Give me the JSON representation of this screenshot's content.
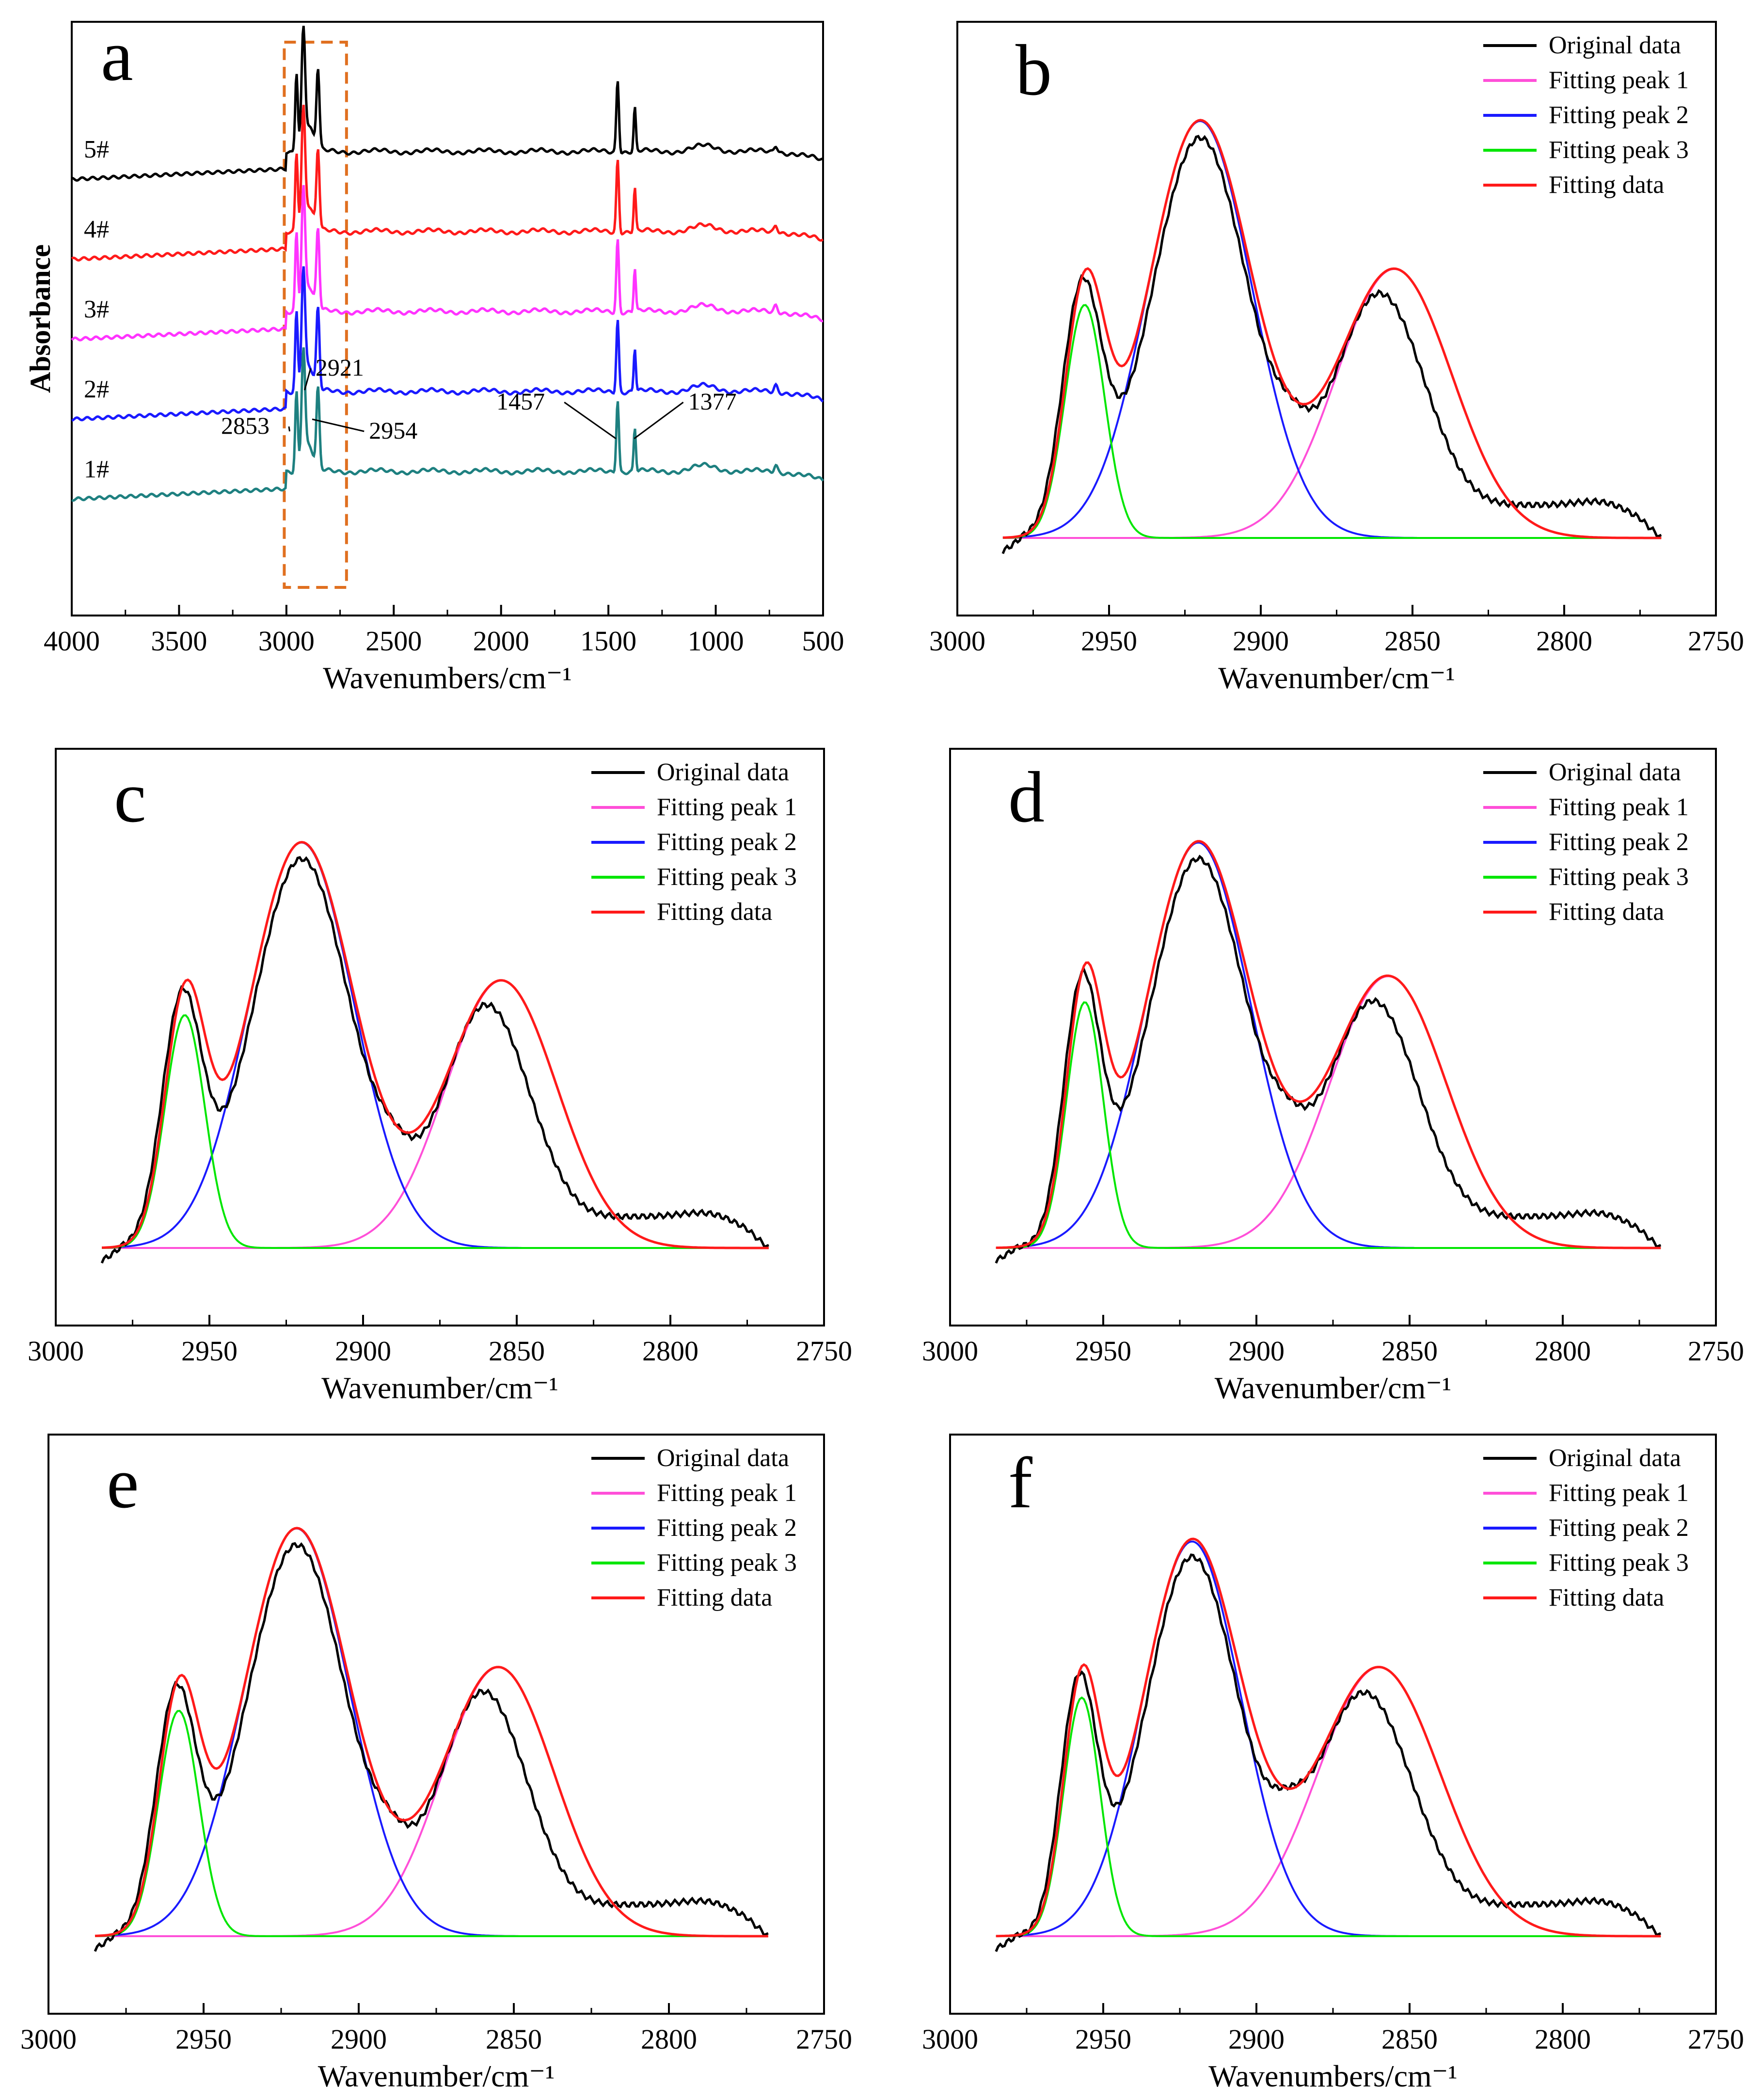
{
  "chart_data": [
    {
      "id": "a",
      "type": "line",
      "panel_label": "a",
      "xlabel": "Wavenumbers/cm⁻¹",
      "ylabel": "Absorbance",
      "xlim": [
        4000,
        500
      ],
      "x_ticks": [
        4000,
        3500,
        3000,
        2500,
        2000,
        1500,
        1000,
        500
      ],
      "highlight_range": [
        3010,
        2720
      ],
      "series": [
        {
          "name": "5#",
          "color": "#000000",
          "offset": 4
        },
        {
          "name": "4#",
          "color": "#ff1a1a",
          "offset": 3
        },
        {
          "name": "3#",
          "color": "#ff33ff",
          "offset": 2
        },
        {
          "name": "2#",
          "color": "#1a1aff",
          "offset": 1
        },
        {
          "name": "1#",
          "color": "#1e8080",
          "offset": 0
        }
      ],
      "annotations": [
        {
          "text": "2853",
          "x": 2853
        },
        {
          "text": "2921",
          "x": 2921
        },
        {
          "text": "2954",
          "x": 2954
        },
        {
          "text": "1457",
          "x": 1457
        },
        {
          "text": "1377",
          "x": 1377
        }
      ]
    },
    {
      "id": "b",
      "type": "line",
      "panel_label": "b",
      "xlabel": "Wavenumber/cm⁻¹",
      "xlim": [
        3000,
        2750
      ],
      "x_ticks": [
        3000,
        2950,
        2900,
        2850,
        2800,
        2750
      ],
      "legend": [
        "Original data",
        "Fitting peak 1",
        "Fitting peak 2",
        "Fitting peak 3",
        "Fitting data"
      ],
      "peaks": [
        {
          "name": "Fitting peak 1",
          "center": 2856,
          "height": 0.6,
          "width": 19
        },
        {
          "name": "Fitting peak 2",
          "center": 2920,
          "height": 0.93,
          "width": 17
        },
        {
          "name": "Fitting peak 3",
          "center": 2958,
          "height": 0.52,
          "width": 6.5
        }
      ]
    },
    {
      "id": "c",
      "type": "line",
      "panel_label": "c",
      "xlabel": "Wavenumber/cm⁻¹",
      "xlim": [
        3000,
        2750
      ],
      "x_ticks": [
        3000,
        2950,
        2900,
        2850,
        2800,
        2750
      ],
      "legend": [
        "Original data",
        "Fitting peak 1",
        "Fitting peak 2",
        "Fitting peak 3",
        "Fitting data"
      ],
      "peaks": [
        {
          "name": "Fitting peak 1",
          "center": 2855,
          "height": 0.62,
          "width": 18
        },
        {
          "name": "Fitting peak 2",
          "center": 2920,
          "height": 0.94,
          "width": 17
        },
        {
          "name": "Fitting peak 3",
          "center": 2958,
          "height": 0.54,
          "width": 6.5
        }
      ]
    },
    {
      "id": "d",
      "type": "line",
      "panel_label": "d",
      "xlabel": "Wavenumber/cm⁻¹",
      "xlim": [
        3000,
        2750
      ],
      "x_ticks": [
        3000,
        2950,
        2900,
        2850,
        2800,
        2750
      ],
      "legend": [
        "Original data",
        "Fitting peak 1",
        "Fitting peak 2",
        "Fitting peak 3",
        "Fitting data"
      ],
      "peaks": [
        {
          "name": "Fitting peak 1",
          "center": 2857,
          "height": 0.63,
          "width": 19
        },
        {
          "name": "Fitting peak 2",
          "center": 2919,
          "height": 0.94,
          "width": 17
        },
        {
          "name": "Fitting peak 3",
          "center": 2956,
          "height": 0.57,
          "width": 6
        }
      ]
    },
    {
      "id": "e",
      "type": "line",
      "panel_label": "e",
      "xlabel": "Wavenumber/cm⁻¹",
      "xlim": [
        3000,
        2750
      ],
      "x_ticks": [
        3000,
        2950,
        2900,
        2850,
        2800,
        2750
      ],
      "legend": [
        "Original data",
        "Fitting peak 1",
        "Fitting peak 2",
        "Fitting peak 3",
        "Fitting data"
      ],
      "peaks": [
        {
          "name": "Fitting peak 1",
          "center": 2855,
          "height": 0.62,
          "width": 18
        },
        {
          "name": "Fitting peak 2",
          "center": 2920,
          "height": 0.94,
          "width": 17
        },
        {
          "name": "Fitting peak 3",
          "center": 2958,
          "height": 0.52,
          "width": 6.5
        }
      ]
    },
    {
      "id": "f",
      "type": "line",
      "panel_label": "f",
      "xlabel": "Wavenumbers/cm⁻¹",
      "xlim": [
        3000,
        2750
      ],
      "x_ticks": [
        3000,
        2950,
        2900,
        2850,
        2800,
        2750
      ],
      "legend": [
        "Original data",
        "Fitting peak 1",
        "Fitting peak 2",
        "Fitting peak 3",
        "Fitting data"
      ],
      "peaks": [
        {
          "name": "Fitting peak 1",
          "center": 2860,
          "height": 0.62,
          "width": 20
        },
        {
          "name": "Fitting peak 2",
          "center": 2921,
          "height": 0.91,
          "width": 16
        },
        {
          "name": "Fitting peak 3",
          "center": 2957,
          "height": 0.55,
          "width": 6
        }
      ]
    }
  ],
  "colors": {
    "original": "#000000",
    "peak1": "#ff4fd8",
    "peak2": "#1a1aff",
    "peak3": "#00e600",
    "fit": "#ff1a1a",
    "highlight_box": "#e07020"
  }
}
